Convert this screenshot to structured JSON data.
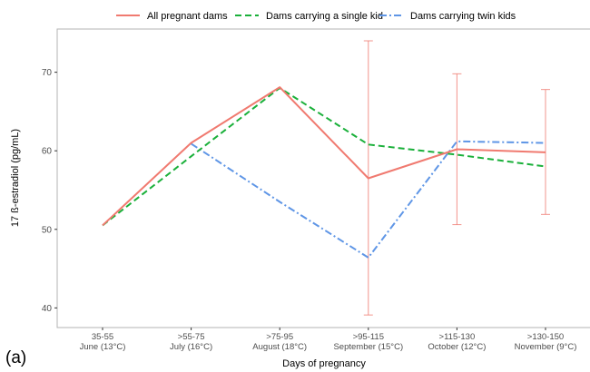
{
  "panel_label": "(a)",
  "chart_data": {
    "type": "line",
    "xlabel": "Days of pregnancy",
    "ylabel": "17 ß-estradiol (pg/mL)",
    "categories": [
      [
        "35-55",
        "June (13°C)"
      ],
      [
        ">55-75",
        "July (16°C)"
      ],
      [
        ">75-95",
        "August (18°C)"
      ],
      [
        ">95-115",
        "September (15°C)"
      ],
      [
        ">115-130",
        "October (12°C)"
      ],
      [
        ">130-150",
        "November (9°C)"
      ]
    ],
    "yticks": [
      40,
      50,
      60,
      70
    ],
    "ylim": [
      37.5,
      75.5
    ],
    "grid": false,
    "legend_position": "top",
    "series": [
      {
        "name": "All pregnant dams",
        "color": "#f07a70",
        "dash": "solid",
        "values": [
          50.5,
          61.0,
          68.1,
          56.5,
          60.2,
          59.8
        ],
        "error_bars": [
          null,
          null,
          null,
          [
            39.1,
            74.0
          ],
          [
            50.6,
            69.8
          ],
          [
            51.9,
            67.8
          ]
        ]
      },
      {
        "name": "Dams carrying a single kid",
        "color": "#1ab03a",
        "dash": "dashed",
        "values": [
          50.5,
          59.3,
          68.0,
          60.8,
          59.5,
          58.0
        ]
      },
      {
        "name": "Dams carrying twin kids",
        "color": "#5f96e6",
        "dash": "dashdot",
        "values": [
          null,
          60.9,
          53.5,
          46.4,
          61.2,
          61.0
        ]
      }
    ]
  }
}
